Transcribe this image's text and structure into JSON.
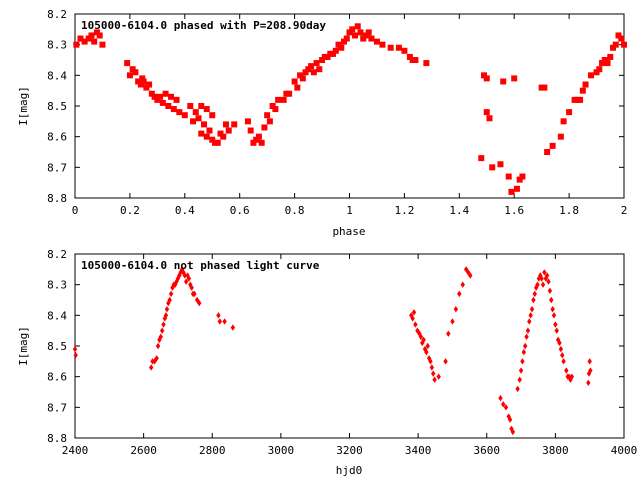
{
  "chart_data": [
    {
      "type": "scatter",
      "title": "105000-6104.0 phased with P=208.90day",
      "xlabel": "phase",
      "ylabel": "I[mag]",
      "xlim": [
        0,
        2
      ],
      "ylim": [
        8.2,
        8.8
      ],
      "y_inverted": true,
      "x_ticks": [
        0,
        0.2,
        0.4,
        0.6,
        0.8,
        1,
        1.2,
        1.4,
        1.6,
        1.8,
        2
      ],
      "x_tick_labels": [
        "0",
        "0.2",
        "0.4",
        "0.6",
        "0.8",
        "1",
        "1.2",
        "1.4",
        "1.6",
        "1.8",
        "2"
      ],
      "y_ticks": [
        8.2,
        8.3,
        8.4,
        8.5,
        8.6,
        8.7,
        8.8
      ],
      "y_tick_labels": [
        "8.2",
        "8.3",
        "8.4",
        "8.5",
        "8.6",
        "8.7",
        "8.8"
      ],
      "marker": "square",
      "color": "#ff0000",
      "points": [
        [
          0.005,
          8.3
        ],
        [
          0.02,
          8.28
        ],
        [
          0.035,
          8.29
        ],
        [
          0.05,
          8.28
        ],
        [
          0.06,
          8.27
        ],
        [
          0.07,
          8.29
        ],
        [
          0.08,
          8.26
        ],
        [
          0.09,
          8.27
        ],
        [
          0.1,
          8.3
        ],
        [
          0.19,
          8.36
        ],
        [
          0.2,
          8.4
        ],
        [
          0.21,
          8.38
        ],
        [
          0.22,
          8.39
        ],
        [
          0.23,
          8.42
        ],
        [
          0.24,
          8.43
        ],
        [
          0.245,
          8.41
        ],
        [
          0.25,
          8.42
        ],
        [
          0.26,
          8.44
        ],
        [
          0.27,
          8.43
        ],
        [
          0.28,
          8.46
        ],
        [
          0.29,
          8.47
        ],
        [
          0.3,
          8.48
        ],
        [
          0.31,
          8.47
        ],
        [
          0.32,
          8.49
        ],
        [
          0.33,
          8.46
        ],
        [
          0.34,
          8.5
        ],
        [
          0.35,
          8.47
        ],
        [
          0.36,
          8.51
        ],
        [
          0.37,
          8.48
        ],
        [
          0.38,
          8.52
        ],
        [
          0.4,
          8.53
        ],
        [
          0.42,
          8.5
        ],
        [
          0.43,
          8.55
        ],
        [
          0.44,
          8.52
        ],
        [
          0.45,
          8.54
        ],
        [
          0.46,
          8.5
        ],
        [
          0.47,
          8.56
        ],
        [
          0.48,
          8.51
        ],
        [
          0.49,
          8.58
        ],
        [
          0.5,
          8.53
        ],
        [
          0.46,
          8.59
        ],
        [
          0.48,
          8.6
        ],
        [
          0.5,
          8.61
        ],
        [
          0.51,
          8.62
        ],
        [
          0.52,
          8.62
        ],
        [
          0.53,
          8.59
        ],
        [
          0.54,
          8.6
        ],
        [
          0.55,
          8.56
        ],
        [
          0.56,
          8.58
        ],
        [
          0.58,
          8.56
        ],
        [
          0.63,
          8.55
        ],
        [
          0.64,
          8.58
        ],
        [
          0.65,
          8.62
        ],
        [
          0.66,
          8.61
        ],
        [
          0.67,
          8.6
        ],
        [
          0.68,
          8.62
        ],
        [
          0.69,
          8.57
        ],
        [
          0.7,
          8.53
        ],
        [
          0.71,
          8.55
        ],
        [
          0.72,
          8.5
        ],
        [
          0.73,
          8.51
        ],
        [
          0.74,
          8.48
        ],
        [
          0.76,
          8.48
        ],
        [
          0.77,
          8.46
        ],
        [
          0.78,
          8.46
        ],
        [
          0.8,
          8.42
        ],
        [
          0.81,
          8.44
        ],
        [
          0.82,
          8.4
        ],
        [
          0.83,
          8.41
        ],
        [
          0.84,
          8.39
        ],
        [
          0.85,
          8.38
        ],
        [
          0.86,
          8.37
        ],
        [
          0.87,
          8.39
        ],
        [
          0.88,
          8.36
        ],
        [
          0.89,
          8.38
        ],
        [
          0.9,
          8.35
        ],
        [
          0.91,
          8.34
        ],
        [
          0.92,
          8.34
        ],
        [
          0.93,
          8.33
        ],
        [
          0.94,
          8.33
        ],
        [
          0.95,
          8.32
        ],
        [
          0.96,
          8.3
        ],
        [
          0.97,
          8.31
        ],
        [
          0.98,
          8.29
        ],
        [
          0.99,
          8.28
        ],
        [
          1.0,
          8.26
        ],
        [
          1.01,
          8.25
        ],
        [
          1.02,
          8.27
        ],
        [
          1.03,
          8.24
        ],
        [
          1.04,
          8.26
        ],
        [
          1.05,
          8.28
        ],
        [
          1.06,
          8.27
        ],
        [
          1.07,
          8.26
        ],
        [
          1.08,
          8.28
        ],
        [
          1.1,
          8.29
        ],
        [
          1.12,
          8.3
        ],
        [
          1.15,
          8.31
        ],
        [
          1.18,
          8.31
        ],
        [
          1.2,
          8.32
        ],
        [
          1.22,
          8.34
        ],
        [
          1.23,
          8.35
        ],
        [
          1.24,
          8.35
        ],
        [
          1.28,
          8.36
        ],
        [
          1.48,
          8.67
        ],
        [
          1.49,
          8.4
        ],
        [
          1.5,
          8.41
        ],
        [
          1.5,
          8.52
        ],
        [
          1.51,
          8.54
        ],
        [
          1.52,
          8.7
        ],
        [
          1.55,
          8.69
        ],
        [
          1.56,
          8.42
        ],
        [
          1.58,
          8.73
        ],
        [
          1.59,
          8.78
        ],
        [
          1.6,
          8.41
        ],
        [
          1.61,
          8.77
        ],
        [
          1.62,
          8.74
        ],
        [
          1.63,
          8.73
        ],
        [
          1.7,
          8.44
        ],
        [
          1.71,
          8.44
        ],
        [
          1.72,
          8.65
        ],
        [
          1.74,
          8.63
        ],
        [
          1.77,
          8.6
        ],
        [
          1.78,
          8.55
        ],
        [
          1.8,
          8.52
        ],
        [
          1.82,
          8.48
        ],
        [
          1.83,
          8.48
        ],
        [
          1.84,
          8.48
        ],
        [
          1.85,
          8.45
        ],
        [
          1.86,
          8.43
        ],
        [
          1.88,
          8.4
        ],
        [
          1.9,
          8.39
        ],
        [
          1.91,
          8.38
        ],
        [
          1.92,
          8.36
        ],
        [
          1.93,
          8.35
        ],
        [
          1.94,
          8.36
        ],
        [
          1.95,
          8.34
        ],
        [
          1.96,
          8.31
        ],
        [
          1.97,
          8.3
        ],
        [
          1.98,
          8.27
        ],
        [
          1.99,
          8.28
        ],
        [
          2.0,
          8.3
        ]
      ]
    },
    {
      "type": "scatter",
      "title": "105000-6104.0 not phased light curve",
      "xlabel": "hjd0",
      "ylabel": "I[mag]",
      "xlim": [
        2400,
        4000
      ],
      "ylim": [
        8.2,
        8.8
      ],
      "y_inverted": true,
      "x_ticks": [
        2400,
        2600,
        2800,
        3000,
        3200,
        3400,
        3600,
        3800,
        4000
      ],
      "x_tick_labels": [
        "2400",
        "2600",
        "2800",
        "3000",
        "3200",
        "3400",
        "3600",
        "3800",
        "4000"
      ],
      "y_ticks": [
        8.2,
        8.3,
        8.4,
        8.5,
        8.6,
        8.7,
        8.8
      ],
      "y_tick_labels": [
        "8.2",
        "8.3",
        "8.4",
        "8.5",
        "8.6",
        "8.7",
        "8.8"
      ],
      "marker": "diamond",
      "color": "#ff0000",
      "points": [
        [
          2400,
          8.51
        ],
        [
          2402,
          8.53
        ],
        [
          2622,
          8.57
        ],
        [
          2626,
          8.55
        ],
        [
          2632,
          8.55
        ],
        [
          2638,
          8.54
        ],
        [
          2642,
          8.5
        ],
        [
          2646,
          8.48
        ],
        [
          2650,
          8.47
        ],
        [
          2654,
          8.45
        ],
        [
          2658,
          8.43
        ],
        [
          2662,
          8.41
        ],
        [
          2665,
          8.4
        ],
        [
          2668,
          8.38
        ],
        [
          2672,
          8.36
        ],
        [
          2676,
          8.35
        ],
        [
          2680,
          8.33
        ],
        [
          2684,
          8.31
        ],
        [
          2688,
          8.3
        ],
        [
          2692,
          8.3
        ],
        [
          2696,
          8.29
        ],
        [
          2700,
          8.28
        ],
        [
          2704,
          8.27
        ],
        [
          2708,
          8.26
        ],
        [
          2712,
          8.25
        ],
        [
          2716,
          8.26
        ],
        [
          2720,
          8.27
        ],
        [
          2724,
          8.29
        ],
        [
          2728,
          8.27
        ],
        [
          2732,
          8.28
        ],
        [
          2736,
          8.3
        ],
        [
          2740,
          8.31
        ],
        [
          2744,
          8.33
        ],
        [
          2748,
          8.33
        ],
        [
          2756,
          8.35
        ],
        [
          2762,
          8.36
        ],
        [
          2818,
          8.4
        ],
        [
          2822,
          8.42
        ],
        [
          2836,
          8.42
        ],
        [
          2860,
          8.44
        ],
        [
          3380,
          8.4
        ],
        [
          3384,
          8.41
        ],
        [
          3388,
          8.39
        ],
        [
          3392,
          8.43
        ],
        [
          3398,
          8.45
        ],
        [
          3404,
          8.46
        ],
        [
          3408,
          8.47
        ],
        [
          3412,
          8.49
        ],
        [
          3416,
          8.48
        ],
        [
          3420,
          8.51
        ],
        [
          3424,
          8.52
        ],
        [
          3428,
          8.5
        ],
        [
          3432,
          8.54
        ],
        [
          3436,
          8.55
        ],
        [
          3440,
          8.57
        ],
        [
          3444,
          8.59
        ],
        [
          3448,
          8.61
        ],
        [
          3460,
          8.6
        ],
        [
          3480,
          8.55
        ],
        [
          3488,
          8.46
        ],
        [
          3500,
          8.42
        ],
        [
          3510,
          8.38
        ],
        [
          3520,
          8.33
        ],
        [
          3530,
          8.3
        ],
        [
          3540,
          8.25
        ],
        [
          3546,
          8.26
        ],
        [
          3552,
          8.27
        ],
        [
          3640,
          8.67
        ],
        [
          3648,
          8.69
        ],
        [
          3656,
          8.7
        ],
        [
          3664,
          8.73
        ],
        [
          3668,
          8.74
        ],
        [
          3672,
          8.77
        ],
        [
          3676,
          8.78
        ],
        [
          3690,
          8.64
        ],
        [
          3696,
          8.61
        ],
        [
          3700,
          8.58
        ],
        [
          3704,
          8.55
        ],
        [
          3708,
          8.52
        ],
        [
          3712,
          8.5
        ],
        [
          3716,
          8.47
        ],
        [
          3720,
          8.45
        ],
        [
          3724,
          8.42
        ],
        [
          3728,
          8.4
        ],
        [
          3732,
          8.38
        ],
        [
          3736,
          8.35
        ],
        [
          3740,
          8.33
        ],
        [
          3744,
          8.31
        ],
        [
          3748,
          8.3
        ],
        [
          3752,
          8.28
        ],
        [
          3756,
          8.27
        ],
        [
          3760,
          8.28
        ],
        [
          3764,
          8.3
        ],
        [
          3768,
          8.26
        ],
        [
          3772,
          8.28
        ],
        [
          3776,
          8.27
        ],
        [
          3780,
          8.29
        ],
        [
          3784,
          8.32
        ],
        [
          3788,
          8.35
        ],
        [
          3792,
          8.38
        ],
        [
          3796,
          8.4
        ],
        [
          3800,
          8.43
        ],
        [
          3804,
          8.45
        ],
        [
          3808,
          8.48
        ],
        [
          3812,
          8.49
        ],
        [
          3816,
          8.51
        ],
        [
          3820,
          8.53
        ],
        [
          3824,
          8.55
        ],
        [
          3832,
          8.58
        ],
        [
          3836,
          8.6
        ],
        [
          3840,
          8.6
        ],
        [
          3844,
          8.61
        ],
        [
          3848,
          8.6
        ],
        [
          3896,
          8.62
        ],
        [
          3898,
          8.59
        ],
        [
          3900,
          8.55
        ],
        [
          3902,
          8.58
        ]
      ]
    }
  ]
}
